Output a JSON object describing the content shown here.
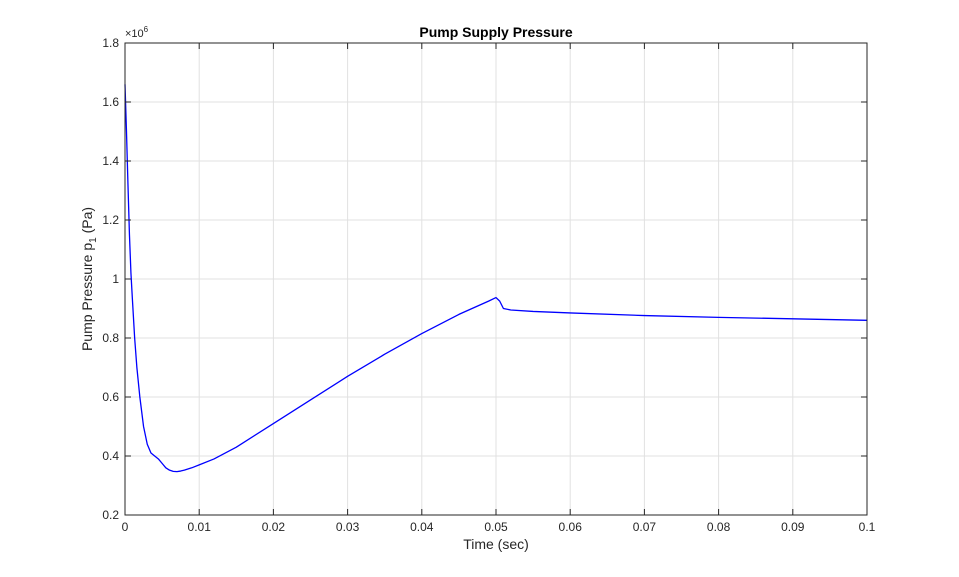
{
  "chart_data": {
    "type": "line",
    "title": "Pump Supply Pressure",
    "xlabel": "Time (sec)",
    "ylabel": {
      "prefix": "Pump  Pressure  p",
      "subscript": "1",
      "suffix": "  (Pa)"
    },
    "y_exponent": {
      "base": "×10",
      "power": "6"
    },
    "xlim": [
      0,
      0.1
    ],
    "ylim": [
      0.2,
      1.8
    ],
    "x_ticks": [
      0,
      0.01,
      0.02,
      0.03,
      0.04,
      0.05,
      0.06,
      0.07,
      0.08,
      0.09,
      0.1
    ],
    "x_tick_labels": [
      "0",
      "0.01",
      "0.02",
      "0.03",
      "0.04",
      "0.05",
      "0.06",
      "0.07",
      "0.08",
      "0.09",
      "0.1"
    ],
    "y_ticks": [
      0.2,
      0.4,
      0.6,
      0.8,
      1.0,
      1.2,
      1.4,
      1.6,
      1.8
    ],
    "y_tick_labels": [
      "0.2",
      "0.4",
      "0.6",
      "0.8",
      "1",
      "1.2",
      "1.4",
      "1.6",
      "1.8"
    ],
    "grid": true,
    "series": [
      {
        "color": "#0000ff",
        "x": [
          0,
          0.0002,
          0.0004,
          0.0006,
          0.0008,
          0.001,
          0.0013,
          0.0016,
          0.002,
          0.0025,
          0.003,
          0.0035,
          0.004,
          0.0045,
          0.005,
          0.0055,
          0.006,
          0.0065,
          0.007,
          0.0075,
          0.008,
          0.009,
          0.01,
          0.012,
          0.015,
          0.02,
          0.025,
          0.03,
          0.035,
          0.04,
          0.045,
          0.049,
          0.05,
          0.0505,
          0.051,
          0.052,
          0.055,
          0.06,
          0.07,
          0.08,
          0.09,
          0.1
        ],
        "y": [
          1.66,
          1.5,
          1.32,
          1.15,
          1.02,
          0.93,
          0.8,
          0.7,
          0.6,
          0.5,
          0.44,
          0.41,
          0.4,
          0.39,
          0.375,
          0.36,
          0.352,
          0.348,
          0.347,
          0.349,
          0.352,
          0.36,
          0.37,
          0.39,
          0.43,
          0.51,
          0.59,
          0.67,
          0.745,
          0.815,
          0.88,
          0.925,
          0.937,
          0.925,
          0.9,
          0.895,
          0.89,
          0.885,
          0.876,
          0.87,
          0.865,
          0.86
        ]
      }
    ]
  }
}
